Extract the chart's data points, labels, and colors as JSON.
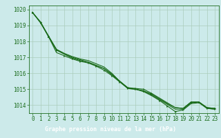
{
  "x": [
    0,
    1,
    2,
    3,
    4,
    5,
    6,
    7,
    8,
    9,
    10,
    11,
    12,
    13,
    14,
    15,
    16,
    17,
    18,
    19,
    20,
    21,
    22,
    23
  ],
  "series": [
    [
      1019.8,
      1019.2,
      1018.3,
      1017.5,
      1017.2,
      1017.0,
      1016.85,
      1016.7,
      1016.5,
      1016.3,
      1015.9,
      1015.5,
      1015.1,
      1015.0,
      1014.9,
      1014.7,
      1014.4,
      1014.1,
      1013.85,
      1013.8,
      1014.2,
      1014.2,
      1013.85,
      1013.8
    ],
    [
      1019.8,
      1019.2,
      1018.3,
      1017.3,
      1017.1,
      1016.9,
      1016.75,
      1016.65,
      1016.45,
      1016.2,
      1015.85,
      1015.45,
      1015.05,
      1015.0,
      1014.85,
      1014.6,
      1014.3,
      1013.95,
      1013.6,
      1013.7,
      1014.1,
      1014.15,
      1013.8,
      1013.75
    ],
    [
      1019.8,
      1019.2,
      1018.35,
      1017.5,
      1017.25,
      1017.05,
      1016.9,
      1016.8,
      1016.6,
      1016.4,
      1016.0,
      1015.5,
      1015.1,
      1015.05,
      1015.0,
      1014.75,
      1014.45,
      1014.15,
      1013.85,
      1013.8,
      1014.2,
      1014.2,
      1013.85,
      1013.8
    ],
    [
      1019.8,
      1019.15,
      1018.3,
      1017.45,
      1017.2,
      1016.95,
      1016.8,
      1016.7,
      1016.5,
      1016.3,
      1015.95,
      1015.5,
      1015.05,
      1015.0,
      1014.9,
      1014.65,
      1014.35,
      1014.05,
      1013.75,
      1013.75,
      1014.15,
      1014.2,
      1013.8,
      1013.75
    ]
  ],
  "line_color": "#1a6b1a",
  "bg_color": "#cceaea",
  "grid_color": "#aaccbb",
  "xlabel": "Graphe pression niveau de la mer (hPa)",
  "xlabel_bg": "#2d7a2d",
  "xlabel_fg": "#ffffff",
  "ylabel_ticks": [
    1014,
    1015,
    1016,
    1017,
    1018,
    1019,
    1020
  ],
  "xlim": [
    -0.5,
    23.5
  ],
  "ylim": [
    1013.5,
    1020.25
  ],
  "tick_fontsize": 5.5,
  "xlabel_fontsize": 6.0
}
